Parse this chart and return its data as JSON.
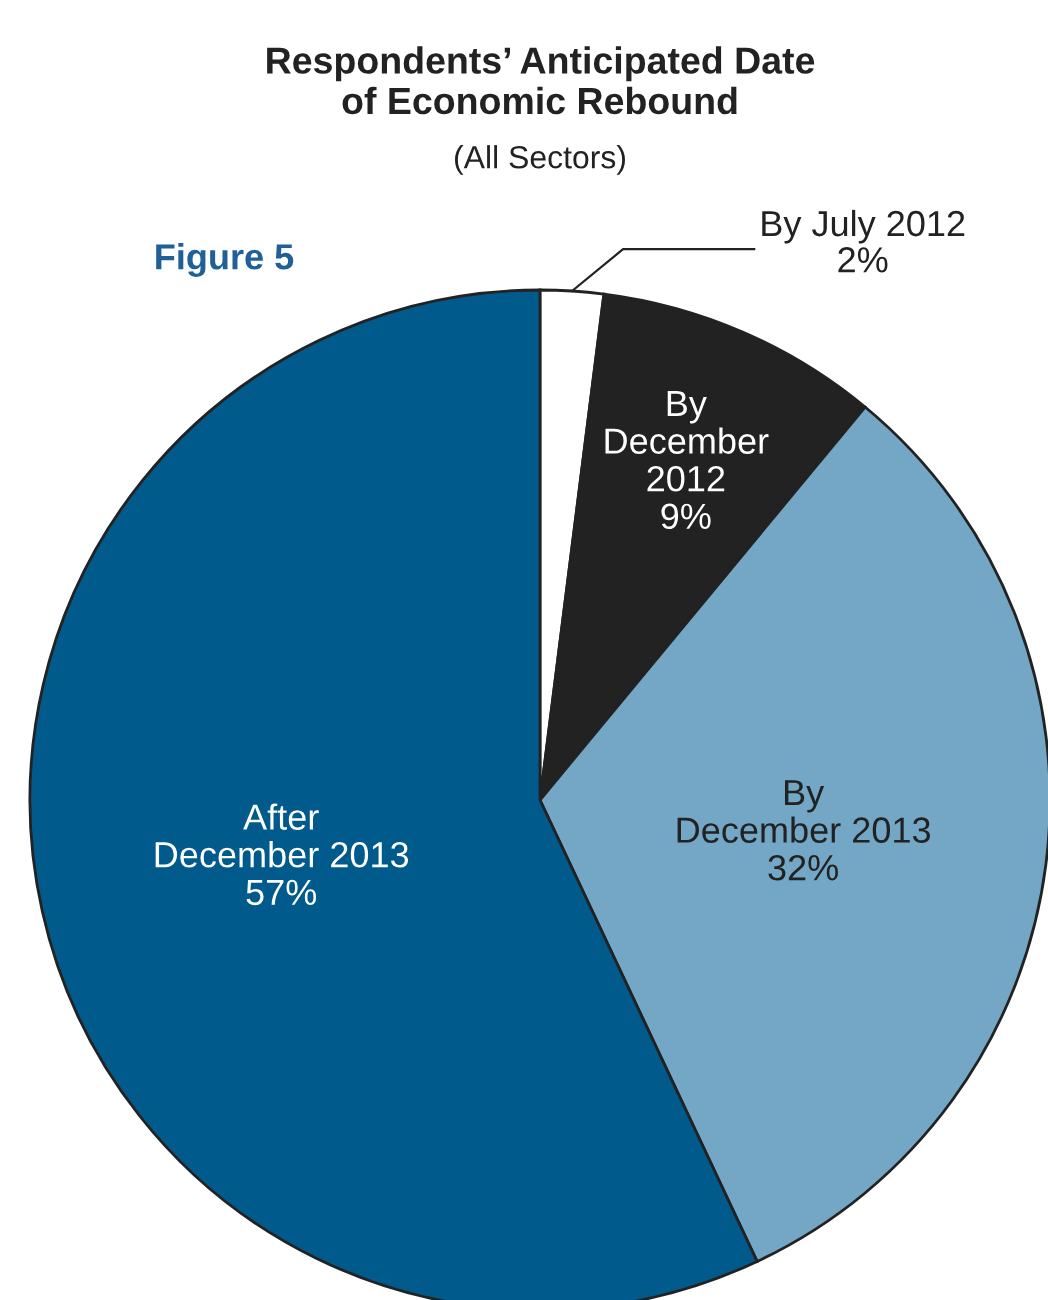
{
  "chart_data": {
    "type": "pie",
    "title": "Respondents’ Anticipated Date\nof Economic Rebound",
    "subtitle": "(All Sectors)",
    "annotations": [
      "Figure 5"
    ],
    "categories": [
      "By July 2012",
      "By\nDecember\n2012",
      "By\nDecember 2013",
      "After\nDecember 2013"
    ],
    "values": [
      2,
      9,
      32,
      57
    ],
    "value_labels": [
      "2%",
      "9%",
      "32%",
      "57%"
    ],
    "colors": [
      "#ffffff",
      "#222222",
      "#74a7c5",
      "#005a8c"
    ]
  }
}
